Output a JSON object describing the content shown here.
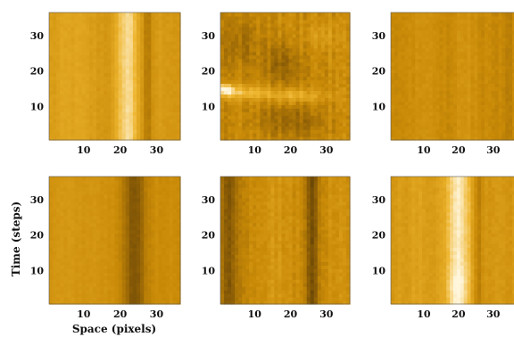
{
  "chart_data": {
    "type": "heatmap",
    "colormap": [
      "#3a2806",
      "#8a5c06",
      "#c98a07",
      "#eeb52e",
      "#fff6dc"
    ],
    "xlabel": "Space (pixels)",
    "ylabel": "Time (steps)",
    "grid_size": 36,
    "xlim": [
      0.5,
      36.5
    ],
    "ylim": [
      0.5,
      36.5
    ],
    "xticks": [
      10,
      20,
      30
    ],
    "yticks": [
      10,
      20,
      30
    ],
    "layout": "2x3",
    "panels": [
      {
        "row": 0,
        "col": 0,
        "description_values": "vertical bright band near x=20-26",
        "base": 0.55,
        "bands": [
          {
            "x": 7,
            "width": 8,
            "amp": 0.1
          },
          {
            "x": 22,
            "width": 3,
            "amp": 0.35
          },
          {
            "x": 27.5,
            "width": 1,
            "amp": -0.2
          },
          {
            "x": 32,
            "width": 4,
            "amp": 0.05
          }
        ],
        "noise": 0.04,
        "blobs": []
      },
      {
        "row": 0,
        "col": 1,
        "description_values": "turbulent pattern, bright streak near y=14",
        "base": 0.5,
        "bands": [],
        "noise": 0.1,
        "blobs": [
          {
            "x": 6,
            "y": 14,
            "rx": 10,
            "ry": 2,
            "amp": 0.28
          },
          {
            "x": 22,
            "y": 13,
            "rx": 8,
            "ry": 2,
            "amp": 0.22
          },
          {
            "x": 2,
            "y": 15,
            "rx": 2,
            "ry": 1.5,
            "amp": 0.45
          },
          {
            "x": 20,
            "y": 6,
            "rx": 9,
            "ry": 5,
            "amp": -0.18
          },
          {
            "x": 18,
            "y": 22,
            "rx": 5,
            "ry": 6,
            "amp": -0.2
          },
          {
            "x": 6,
            "y": 28,
            "rx": 6,
            "ry": 8,
            "amp": -0.14
          },
          {
            "x": 28,
            "y": 30,
            "rx": 5,
            "ry": 4,
            "amp": 0.1
          }
        ]
      },
      {
        "row": 0,
        "col": 2,
        "description_values": "mostly uniform mid tone",
        "base": 0.5,
        "bands": [
          {
            "x": 10,
            "width": 4,
            "amp": 0.05
          },
          {
            "x": 22,
            "width": 3,
            "amp": 0.06
          },
          {
            "x": 34,
            "width": 2,
            "amp": -0.05
          }
        ],
        "noise": 0.05,
        "blobs": []
      },
      {
        "row": 1,
        "col": 0,
        "description_values": "dark vertical band near x=22-26",
        "base": 0.52,
        "bands": [
          {
            "x": 5,
            "width": 6,
            "amp": 0.05
          },
          {
            "x": 24,
            "width": 3,
            "amp": -0.3
          },
          {
            "x": 14,
            "width": 4,
            "amp": 0.04
          }
        ],
        "noise": 0.035,
        "blobs": []
      },
      {
        "row": 1,
        "col": 1,
        "description_values": "dark vertical stripes near x=4 and x=26",
        "base": 0.5,
        "bands": [
          {
            "x": 3,
            "width": 2.5,
            "amp": -0.28
          },
          {
            "x": 26,
            "width": 2,
            "amp": -0.3
          },
          {
            "x": 15,
            "width": 4,
            "amp": 0.08
          },
          {
            "x": 33,
            "width": 3,
            "amp": 0.06
          }
        ],
        "noise": 0.07,
        "blobs": []
      },
      {
        "row": 1,
        "col": 2,
        "description_values": "bright vertical band near x=18-24",
        "base": 0.58,
        "bands": [
          {
            "x": 20,
            "width": 3.5,
            "amp": 0.38
          },
          {
            "x": 25.5,
            "width": 1.5,
            "amp": -0.15
          },
          {
            "x": 8,
            "width": 5,
            "amp": 0.05
          }
        ],
        "noise": 0.05,
        "blobs": [
          {
            "x": 20,
            "y": 6,
            "rx": 3,
            "ry": 5,
            "amp": 0.08
          }
        ]
      }
    ]
  }
}
